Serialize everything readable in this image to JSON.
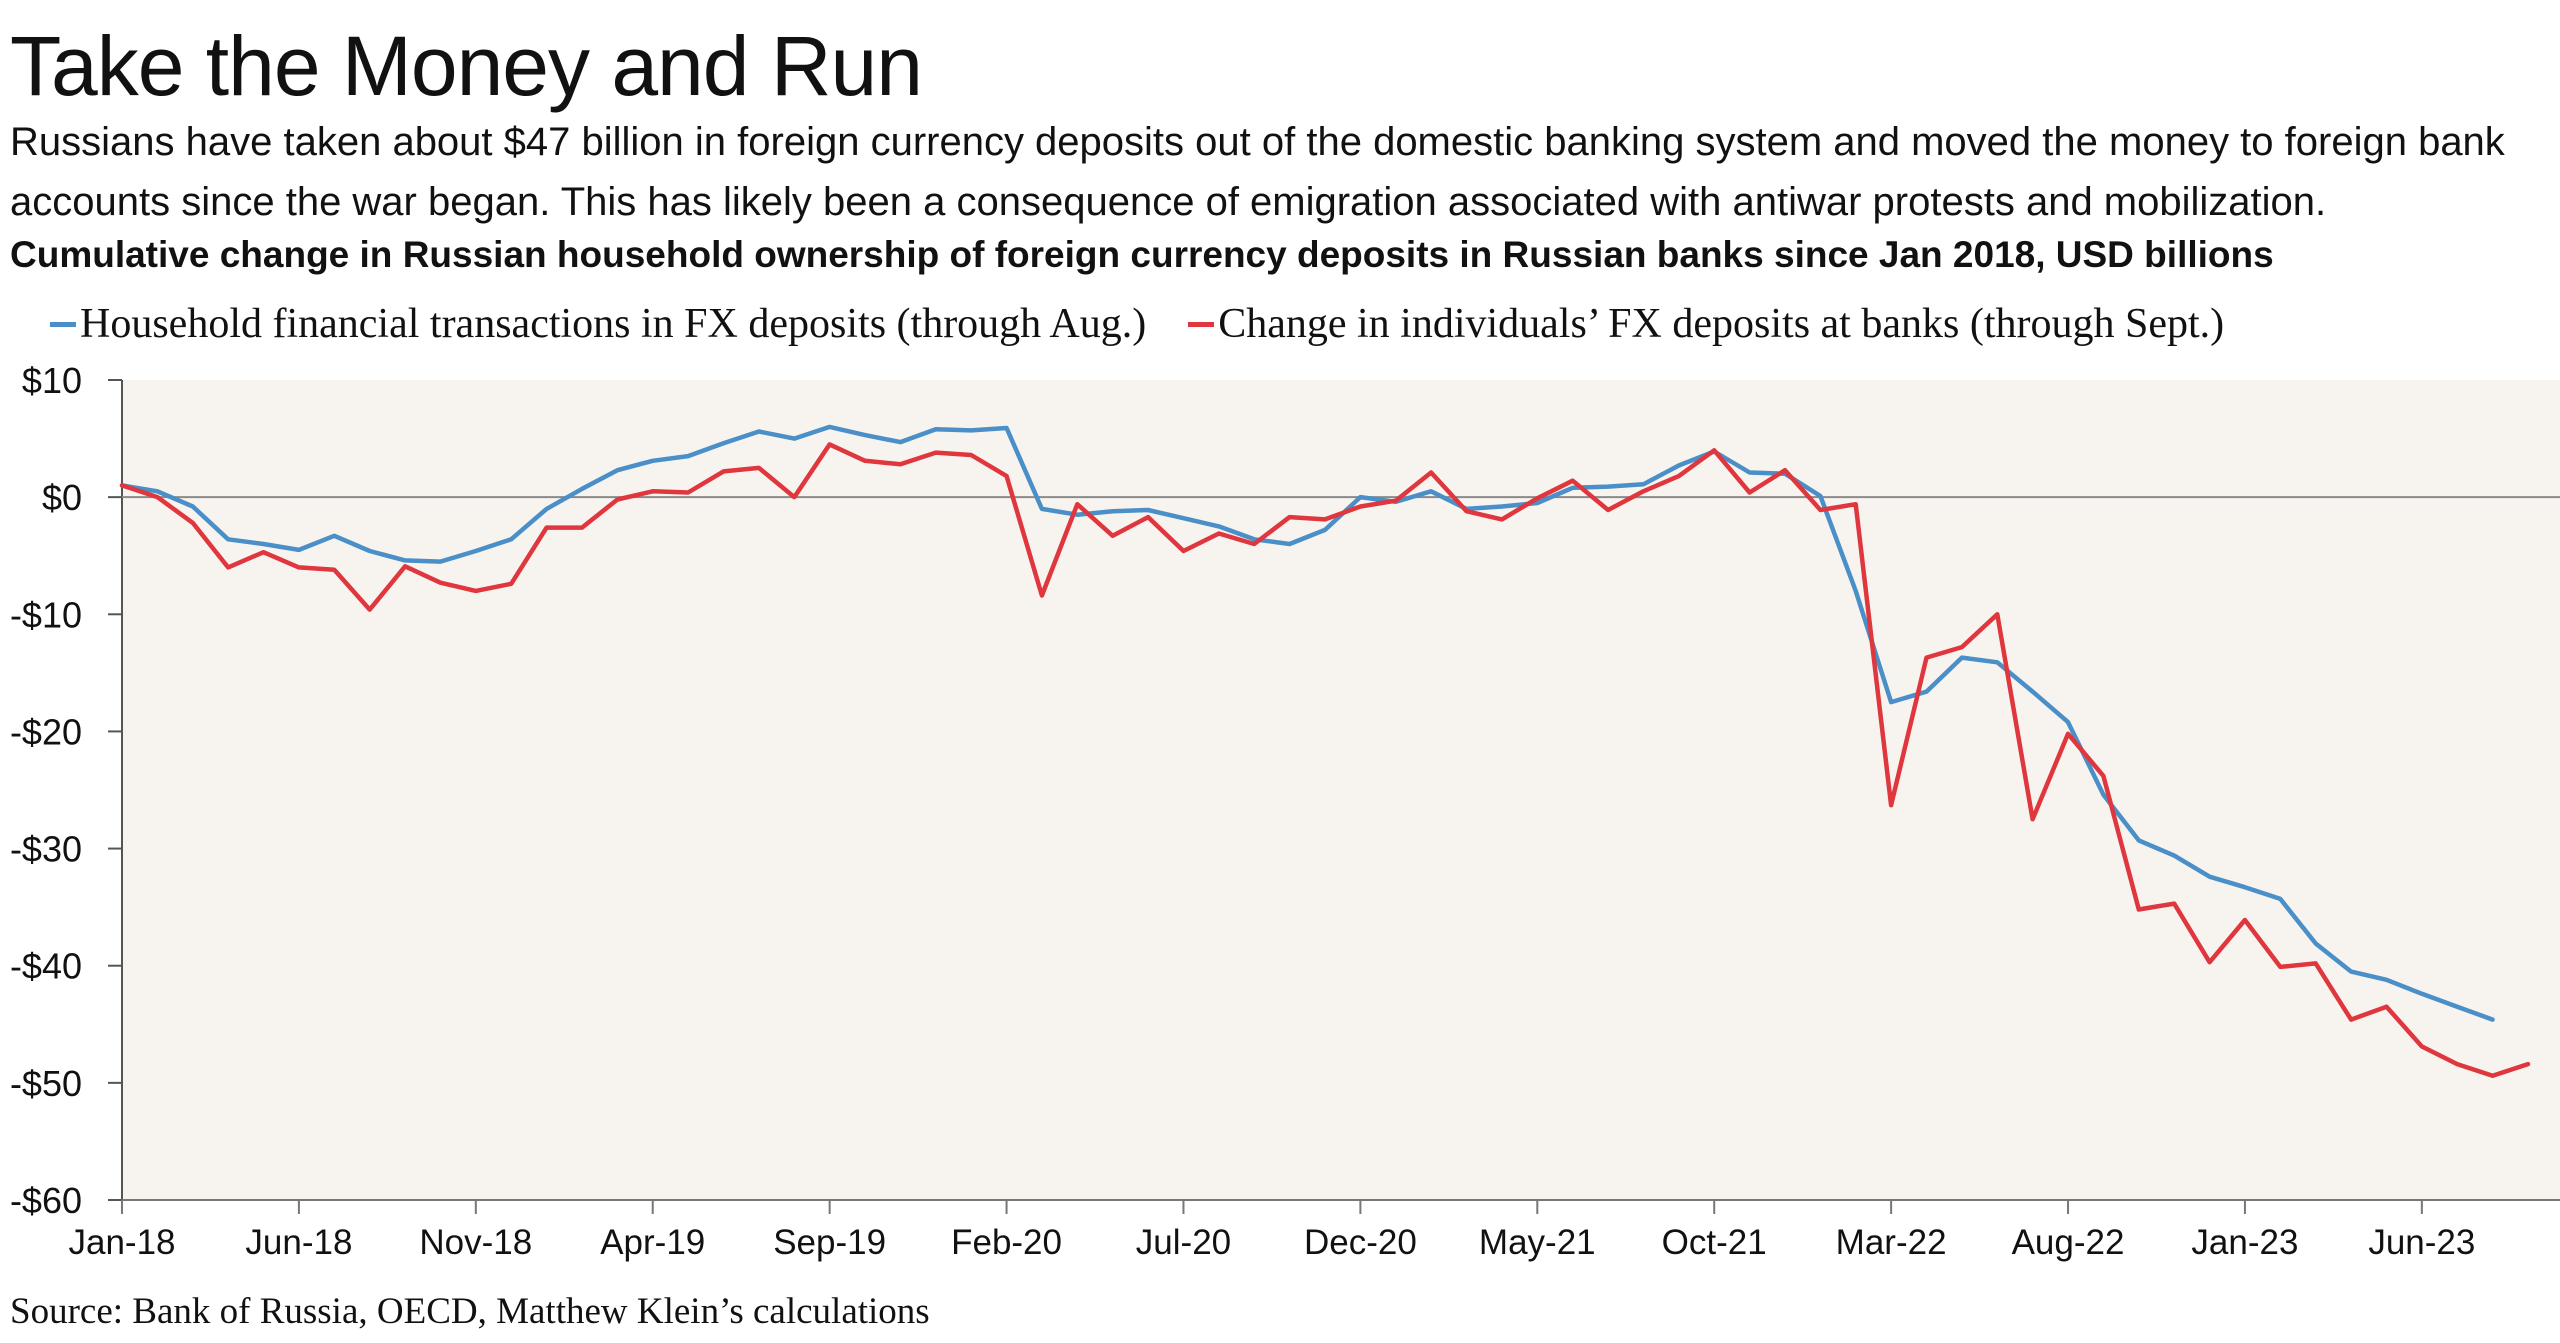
{
  "header": {
    "title": "Take the Money and Run",
    "subtitle": "Russians have taken about $47 billion in foreign currency deposits out of the domestic banking system and moved the money to foreign bank accounts since the war began. This has likely been a consequence of emigration associated with antiwar protests and mobilization.",
    "chart_heading": "Cumulative change in Russian household ownership of foreign currency deposits in Russian banks since Jan 2018, USD billions"
  },
  "source": "Source: Bank of Russia, OECD, Matthew Klein’s calculations",
  "colors": {
    "blue_series": "#4a8fc7",
    "red_series": "#e0363e",
    "plot_background": "#f7f4f0",
    "zero_line": "#8a8a8a"
  },
  "chart_data": {
    "type": "line",
    "title": "Cumulative change in Russian household ownership of foreign currency deposits in Russian banks since Jan 2018, USD billions",
    "ylim": [
      -60,
      10
    ],
    "ytick_values": [
      10,
      0,
      -10,
      -20,
      -30,
      -40,
      -50,
      -60
    ],
    "ytick_labels": [
      "$10",
      "$0",
      "-$10",
      "-$20",
      "-$30",
      "-$40",
      "-$50",
      "-$60"
    ],
    "xlim": [
      0,
      68
    ],
    "xtick_positions": [
      0,
      5,
      10,
      15,
      20,
      25,
      30,
      35,
      40,
      45,
      50,
      55,
      60,
      65
    ],
    "xtick_labels": [
      "Jan-18",
      "Jun-18",
      "Nov-18",
      "Apr-19",
      "Sep-19",
      "Feb-20",
      "Jul-20",
      "Dec-20",
      "May-21",
      "Oct-21",
      "Mar-22",
      "Aug-22",
      "Jan-23",
      "Jun-23"
    ],
    "legend_position": "top",
    "grid": false,
    "series": [
      {
        "name": "Household financial transactions in FX deposits (through Aug.)",
        "color": "#4a8fc7",
        "start_month": "Jan-18",
        "values": [
          1.0,
          0.5,
          -0.8,
          -3.6,
          -4.0,
          -4.5,
          -3.3,
          -4.6,
          -5.4,
          -5.5,
          -4.6,
          -3.6,
          -1.0,
          0.7,
          2.3,
          3.1,
          3.5,
          4.6,
          5.6,
          5.0,
          6.0,
          5.3,
          4.7,
          5.8,
          5.7,
          5.9,
          -1.0,
          -1.5,
          -1.2,
          -1.1,
          -1.8,
          -2.5,
          -3.6,
          -4.0,
          -2.8,
          0.0,
          -0.4,
          0.5,
          -1.0,
          -0.8,
          -0.5,
          0.8,
          0.9,
          1.1,
          2.7,
          3.9,
          2.1,
          2.0,
          0.1,
          -8.0,
          -17.5,
          -16.6,
          -13.7,
          -14.1,
          -16.6,
          -19.2,
          -25.4,
          -29.3,
          -30.6,
          -32.4,
          -33.3,
          -34.3,
          -38.1,
          -40.5,
          -41.2,
          -42.4,
          -43.5,
          -44.6
        ]
      },
      {
        "name": "Change in individuals’ FX deposits at banks (through Sept.)",
        "color": "#e0363e",
        "start_month": "Jan-18",
        "values": [
          1.0,
          0.0,
          -2.2,
          -6.0,
          -4.7,
          -6.0,
          -6.2,
          -9.6,
          -5.9,
          -7.3,
          -8.0,
          -7.4,
          -2.6,
          -2.6,
          -0.2,
          0.5,
          0.4,
          2.2,
          2.5,
          0.0,
          4.5,
          3.1,
          2.8,
          3.8,
          3.6,
          1.8,
          -8.4,
          -0.6,
          -3.3,
          -1.7,
          -4.6,
          -3.1,
          -4.0,
          -1.7,
          -1.9,
          -0.8,
          -0.3,
          2.1,
          -1.2,
          -1.9,
          -0.1,
          1.4,
          -1.1,
          0.5,
          1.8,
          4.0,
          0.4,
          2.3,
          -1.1,
          -0.6,
          -26.3,
          -13.7,
          -12.8,
          -10.0,
          -27.5,
          -20.2,
          -23.8,
          -35.2,
          -34.7,
          -39.7,
          -36.1,
          -40.1,
          -39.8,
          -44.6,
          -43.5,
          -46.9,
          -48.4,
          -49.4,
          -48.4
        ]
      }
    ]
  }
}
